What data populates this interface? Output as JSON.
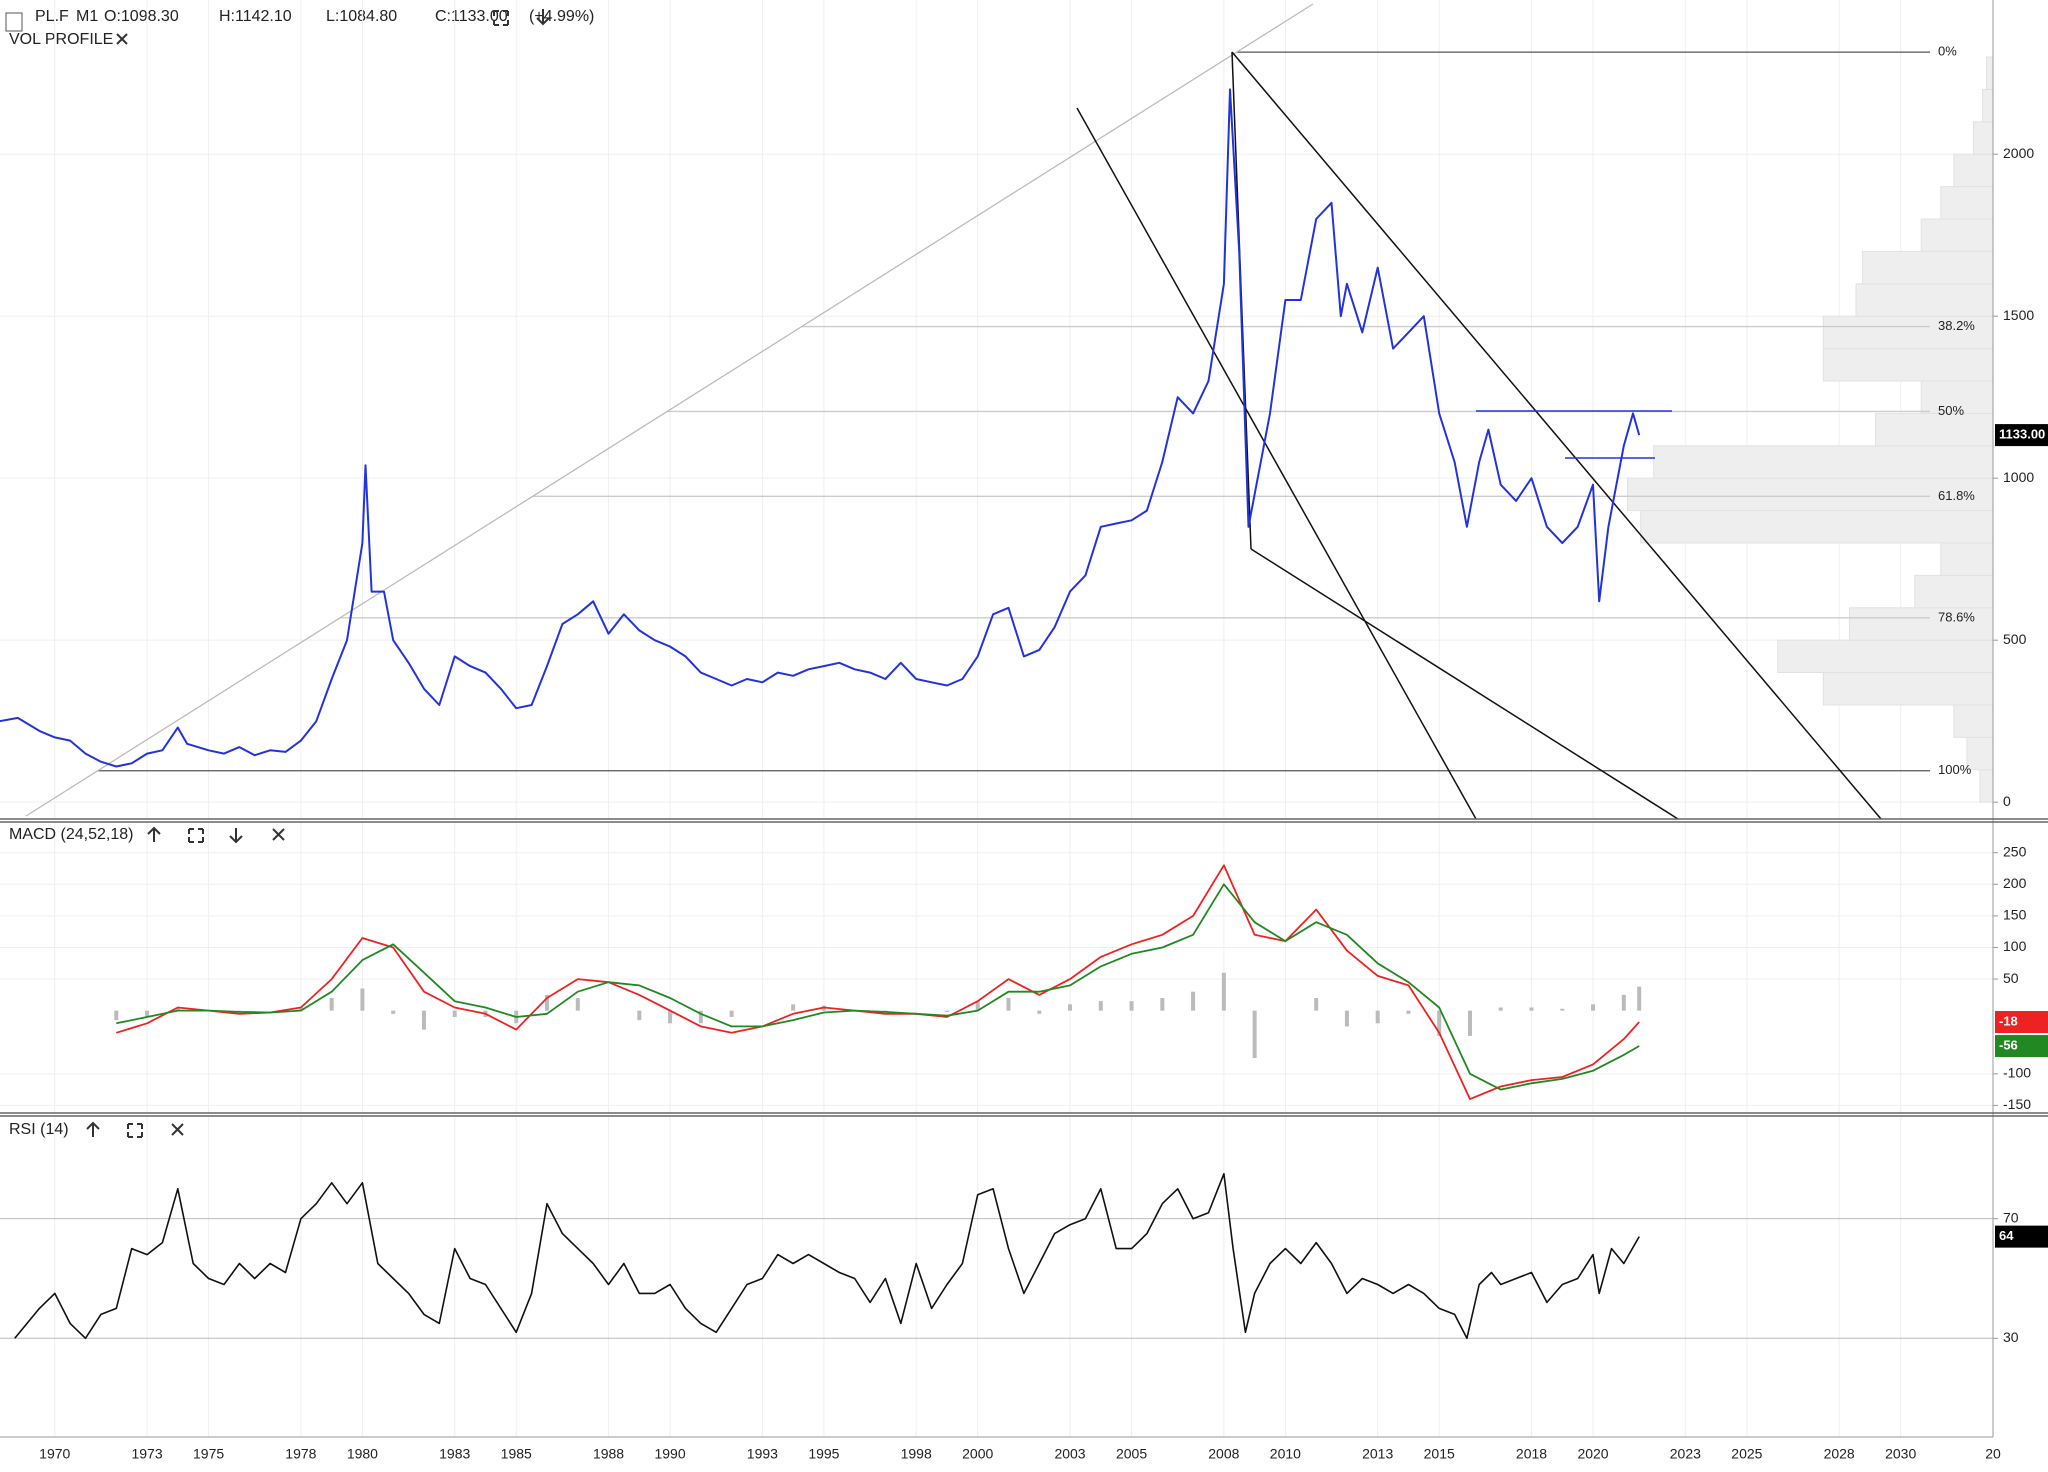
{
  "header": {
    "symbol": "PL.F",
    "interval": "M1",
    "open": "O:1098.30",
    "high": "H:1142.10",
    "low": "L:1084.80",
    "close": "C:1133.00",
    "change": "(+4.99%)"
  },
  "chart_data": [
    {
      "type": "line",
      "indicator": "VOL PROFILE",
      "xlim": [
        1968.22,
        2033.0
      ],
      "ylim": [
        -52,
        2476
      ],
      "yticks": [
        0,
        500,
        1000,
        1500,
        2000
      ],
      "grid": true,
      "x": [
        1968.2,
        1968.8,
        1969.5,
        1970,
        1970.5,
        1971,
        1971.5,
        1972,
        1972.5,
        1973,
        1973.5,
        1974,
        1974.3,
        1975,
        1975.5,
        1976,
        1976.5,
        1977,
        1977.5,
        1978,
        1978.5,
        1979,
        1979.5,
        1980,
        1980.1,
        1980.3,
        1980.7,
        1981,
        1981.5,
        1982,
        1982.5,
        1983,
        1983.5,
        1984,
        1984.5,
        1985,
        1985.5,
        1986,
        1986.5,
        1987,
        1987.5,
        1988,
        1988.5,
        1989,
        1989.5,
        1990,
        1990.5,
        1991,
        1991.5,
        1992,
        1992.5,
        1993,
        1993.5,
        1994,
        1994.5,
        1995,
        1995.5,
        1996,
        1996.5,
        1997,
        1997.5,
        1998,
        1998.5,
        1999,
        1999.5,
        2000,
        2000.5,
        2001,
        2001.5,
        2002,
        2002.5,
        2003,
        2003.5,
        2004,
        2004.5,
        2005,
        2005.5,
        2006,
        2006.5,
        2007,
        2007.5,
        2008,
        2008.2,
        2008.5,
        2008.8,
        2009,
        2009.5,
        2010,
        2010.5,
        2011,
        2011.5,
        2011.8,
        2012,
        2012.5,
        2013,
        2013.5,
        2014,
        2014.5,
        2015,
        2015.5,
        2015.9,
        2016.3,
        2016.6,
        2017,
        2017.5,
        2018,
        2018.5,
        2019,
        2019.5,
        2020,
        2020.2,
        2020.5,
        2021,
        2021.3,
        2021.5
      ],
      "series": [
        {
          "color": "#2233dd",
          "values": [
            250,
            260,
            220,
            200,
            190,
            150,
            125,
            110,
            120,
            150,
            160,
            230,
            180,
            160,
            150,
            170,
            145,
            160,
            155,
            190,
            250,
            380,
            500,
            800,
            1040,
            650,
            650,
            500,
            430,
            350,
            300,
            450,
            420,
            400,
            350,
            290,
            300,
            420,
            550,
            580,
            620,
            520,
            580,
            530,
            500,
            480,
            450,
            400,
            380,
            360,
            380,
            370,
            400,
            390,
            410,
            420,
            430,
            410,
            400,
            380,
            430,
            380,
            370,
            360,
            380,
            450,
            580,
            600,
            450,
            470,
            540,
            650,
            700,
            850,
            860,
            870,
            900,
            1050,
            1250,
            1200,
            1300,
            1600,
            2200,
            1700,
            850,
            950,
            1200,
            1550,
            1550,
            1800,
            1850,
            1500,
            1600,
            1450,
            1650,
            1400,
            1450,
            1500,
            1200,
            1050,
            850,
            1050,
            1150,
            980,
            930,
            1000,
            850,
            800,
            850,
            980,
            620,
            850,
            1100,
            1200,
            1133
          ]
        }
      ],
      "last": 1133,
      "last_label": "1133.00",
      "fib_levels": {
        "labels": [
          "0%",
          "38.2%",
          "50%",
          "61.8%",
          "78.6%",
          "100%"
        ],
        "prices": [
          2315,
          1468,
          1206,
          944,
          569,
          97
        ]
      },
      "volume_profile": {
        "color": "#eeeeee",
        "xlim": [
          0,
          400
        ],
        "bins": [
          0,
          100,
          200,
          300,
          400,
          500,
          600,
          700,
          800,
          900,
          1000,
          1100,
          1200,
          1300,
          1400,
          1500,
          1600,
          1700,
          1800,
          1900,
          2000,
          2100,
          2200,
          2300
        ],
        "values": [
          10,
          20,
          30,
          130,
          165,
          110,
          60,
          40,
          270,
          280,
          260,
          90,
          55,
          130,
          130,
          105,
          100,
          55,
          40,
          30,
          15,
          8,
          5
        ]
      }
    },
    {
      "type": "macd",
      "title": "MACD (24,52,18)",
      "xlim": [
        1968.22,
        2033.0
      ],
      "ylim": [
        -162,
        297
      ],
      "yticks": [
        250,
        200,
        150,
        100,
        50,
        -100,
        -150
      ],
      "x": [
        1972,
        1973,
        1974,
        1975,
        1976,
        1977,
        1978,
        1979,
        1980,
        1981,
        1982,
        1983,
        1984,
        1985,
        1986,
        1987,
        1988,
        1989,
        1990,
        1991,
        1992,
        1993,
        1994,
        1995,
        1996,
        1997,
        1998,
        1999,
        2000,
        2001,
        2002,
        2003,
        2004,
        2005,
        2006,
        2007,
        2008,
        2009,
        2010,
        2011,
        2012,
        2013,
        2014,
        2015,
        2016,
        2017,
        2018,
        2019,
        2020,
        2021,
        2021.5
      ],
      "series": [
        {
          "color": "#ee2222",
          "last": -18,
          "values": [
            -35,
            -20,
            5,
            0,
            -5,
            -3,
            5,
            50,
            115,
            100,
            30,
            5,
            -5,
            -30,
            20,
            50,
            45,
            25,
            0,
            -25,
            -35,
            -25,
            -5,
            5,
            0,
            -5,
            -5,
            -10,
            15,
            50,
            25,
            50,
            85,
            105,
            120,
            150,
            230,
            120,
            110,
            160,
            95,
            55,
            40,
            -35,
            -140,
            -120,
            -110,
            -105,
            -85,
            -45,
            -18
          ]
        },
        {
          "color": "#228822",
          "last": -56,
          "values": [
            -20,
            -10,
            0,
            0,
            -2,
            -3,
            0,
            30,
            80,
            105,
            60,
            15,
            5,
            -10,
            -5,
            30,
            45,
            40,
            20,
            -5,
            -25,
            -25,
            -15,
            -3,
            0,
            -2,
            -5,
            -8,
            0,
            30,
            30,
            40,
            70,
            90,
            100,
            120,
            200,
            140,
            110,
            140,
            120,
            75,
            45,
            5,
            -100,
            -125,
            -115,
            -108,
            -95,
            -70,
            -56
          ]
        },
        {
          "color": "#bbbbbb",
          "type": "histogram",
          "values": [
            -15,
            -10,
            5,
            0,
            -3,
            0,
            5,
            20,
            35,
            -5,
            -30,
            -10,
            -10,
            -20,
            25,
            20,
            0,
            -15,
            -20,
            -20,
            -10,
            0,
            10,
            8,
            0,
            -3,
            0,
            -2,
            15,
            20,
            -5,
            10,
            15,
            15,
            20,
            30,
            60,
            -75,
            0,
            20,
            -25,
            -20,
            -5,
            -40,
            -40,
            5,
            5,
            3,
            10,
            25,
            38
          ]
        }
      ]
    },
    {
      "type": "line",
      "title": "RSI (14)",
      "xlim": [
        1968.22,
        2033.0
      ],
      "ylim": [
        -3,
        104
      ],
      "yticks": [
        30,
        70
      ],
      "grid": true,
      "xticks": [
        1970,
        1973,
        1975,
        1978,
        1980,
        1983,
        1985,
        1988,
        1990,
        1993,
        1995,
        1998,
        2000,
        2003,
        2005,
        2008,
        2010,
        2013,
        2015,
        2018,
        2020,
        2023,
        2025,
        2028,
        2030,
        {
          "value": 2033,
          "label": "20"
        }
      ],
      "x": [
        1968.7,
        1969.5,
        1970,
        1970.5,
        1971,
        1971.5,
        1972,
        1972.5,
        1973,
        1973.5,
        1974,
        1974.5,
        1975,
        1975.5,
        1976,
        1976.5,
        1977,
        1977.5,
        1978,
        1978.5,
        1979,
        1979.5,
        1980,
        1980.5,
        1981,
        1981.5,
        1982,
        1982.5,
        1983,
        1983.5,
        1984,
        1984.5,
        1985,
        1985.5,
        1986,
        1986.5,
        1987,
        1987.5,
        1988,
        1988.5,
        1989,
        1989.5,
        1990,
        1990.5,
        1991,
        1991.5,
        1992,
        1992.5,
        1993,
        1993.5,
        1994,
        1994.5,
        1995,
        1995.5,
        1996,
        1996.5,
        1997,
        1997.5,
        1998,
        1998.5,
        1999,
        1999.5,
        2000,
        2000.5,
        2001,
        2001.5,
        2002,
        2002.5,
        2003,
        2003.5,
        2004,
        2004.5,
        2005,
        2005.5,
        2006,
        2006.5,
        2007,
        2007.5,
        2008,
        2008.3,
        2008.7,
        2009,
        2009.5,
        2010,
        2010.5,
        2011,
        2011.5,
        2012,
        2012.5,
        2013,
        2013.5,
        2014,
        2014.5,
        2015,
        2015.5,
        2015.9,
        2016.3,
        2016.7,
        2017,
        2017.5,
        2018,
        2018.5,
        2019,
        2019.5,
        2020,
        2020.2,
        2020.6,
        2021,
        2021.5
      ],
      "series": [
        {
          "color": "#111111",
          "values": [
            30,
            40,
            45,
            35,
            30,
            38,
            40,
            60,
            58,
            62,
            80,
            55,
            50,
            48,
            55,
            50,
            55,
            52,
            70,
            75,
            82,
            75,
            82,
            55,
            50,
            45,
            38,
            35,
            60,
            50,
            48,
            40,
            32,
            45,
            75,
            65,
            60,
            55,
            48,
            55,
            45,
            45,
            48,
            40,
            35,
            32,
            40,
            48,
            50,
            58,
            55,
            58,
            55,
            52,
            50,
            42,
            50,
            35,
            55,
            40,
            48,
            55,
            78,
            80,
            60,
            45,
            55,
            65,
            68,
            70,
            80,
            60,
            60,
            65,
            75,
            80,
            70,
            72,
            85,
            60,
            32,
            45,
            55,
            60,
            55,
            62,
            55,
            45,
            50,
            48,
            45,
            48,
            45,
            40,
            38,
            30,
            48,
            52,
            48,
            50,
            52,
            42,
            48,
            50,
            58,
            45,
            60,
            55,
            64
          ]
        }
      ],
      "last": 64
    }
  ]
}
